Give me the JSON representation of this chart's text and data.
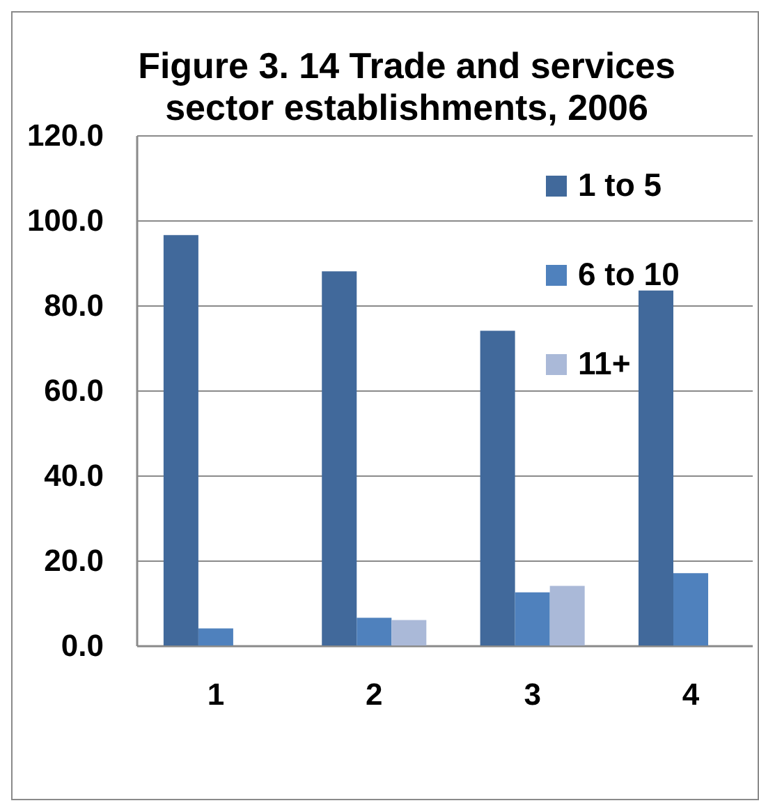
{
  "chart_data": {
    "type": "bar",
    "title": "Figure 3. 14 Trade and services sector establishments, 2006",
    "categories": [
      "1",
      "2",
      "3",
      "4"
    ],
    "series": [
      {
        "name": "1 to 5",
        "color": "#41699b",
        "values": [
          96.5,
          88,
          74,
          83.5
        ]
      },
      {
        "name": "6 to 10",
        "color": "#4f81bd",
        "values": [
          4,
          6.5,
          12.5,
          17
        ]
      },
      {
        "name": "11+",
        "color": "#aab9d8",
        "values": [
          null,
          6,
          14,
          null
        ]
      }
    ],
    "ylim": [
      0,
      120
    ],
    "yticks": [
      {
        "value": 0,
        "label": "0.0"
      },
      {
        "value": 20,
        "label": "20.0"
      },
      {
        "value": 40,
        "label": "40.0"
      },
      {
        "value": 60,
        "label": "60.0"
      },
      {
        "value": 80,
        "label": "80.0"
      },
      {
        "value": 100,
        "label": "100.0"
      },
      {
        "value": 120,
        "label": "120.0"
      }
    ],
    "grid": "y",
    "legend": "top right"
  }
}
